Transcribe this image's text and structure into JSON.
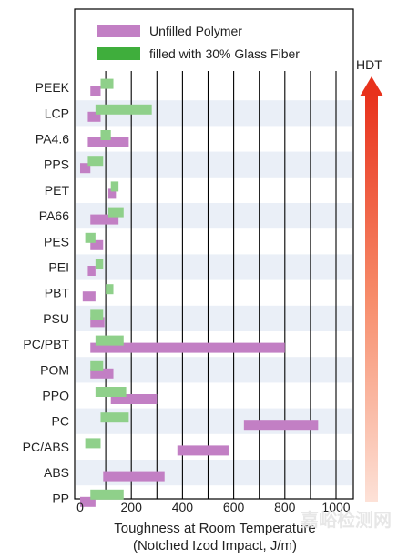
{
  "chart_data": {
    "type": "bar",
    "orientation": "horizontal-range",
    "categories": [
      "PEEK",
      "LCP",
      "PA4.6",
      "PPS",
      "PET",
      "PA66",
      "PES",
      "PEI",
      "PBT",
      "PSU",
      "PC/PBT",
      "POM",
      "PPO",
      "PC",
      "PC/ABS",
      "ABS",
      "PP"
    ],
    "series": [
      {
        "name": "Unfilled Polymer",
        "color": "#c27fc4",
        "ranges": [
          [
            40,
            80
          ],
          [
            30,
            80
          ],
          [
            30,
            190
          ],
          [
            0,
            40
          ],
          [
            110,
            140
          ],
          [
            40,
            150
          ],
          [
            40,
            90
          ],
          [
            30,
            60
          ],
          [
            10,
            60
          ],
          [
            40,
            95
          ],
          [
            40,
            800
          ],
          [
            40,
            130
          ],
          [
            120,
            300
          ],
          [
            640,
            930
          ],
          [
            380,
            580
          ],
          [
            90,
            330
          ],
          [
            0,
            60
          ]
        ]
      },
      {
        "name": "filled with 30% Glass Fiber",
        "color": "#8fd08a",
        "ranges": [
          [
            80,
            130
          ],
          [
            60,
            280
          ],
          [
            80,
            120
          ],
          [
            30,
            90
          ],
          [
            120,
            150
          ],
          [
            110,
            170
          ],
          [
            20,
            60
          ],
          [
            60,
            90
          ],
          [
            100,
            130
          ],
          [
            40,
            90
          ],
          [
            60,
            170
          ],
          [
            40,
            90
          ],
          [
            60,
            180
          ],
          [
            80,
            190
          ],
          [
            20,
            80
          ],
          [
            0,
            0
          ],
          [
            40,
            170
          ]
        ]
      }
    ],
    "xlabel": "Toughness at Room Temperature",
    "xlabel2": "(Notched Izod Impact, J/m)",
    "xticks": [
      0,
      200,
      400,
      600,
      800,
      1000
    ],
    "xlim": [
      0,
      1000
    ],
    "grid": true,
    "legend": "top",
    "arrow_label": "HDT",
    "arrow_color": "#e8452c",
    "watermark": "嘉峪检测网"
  }
}
